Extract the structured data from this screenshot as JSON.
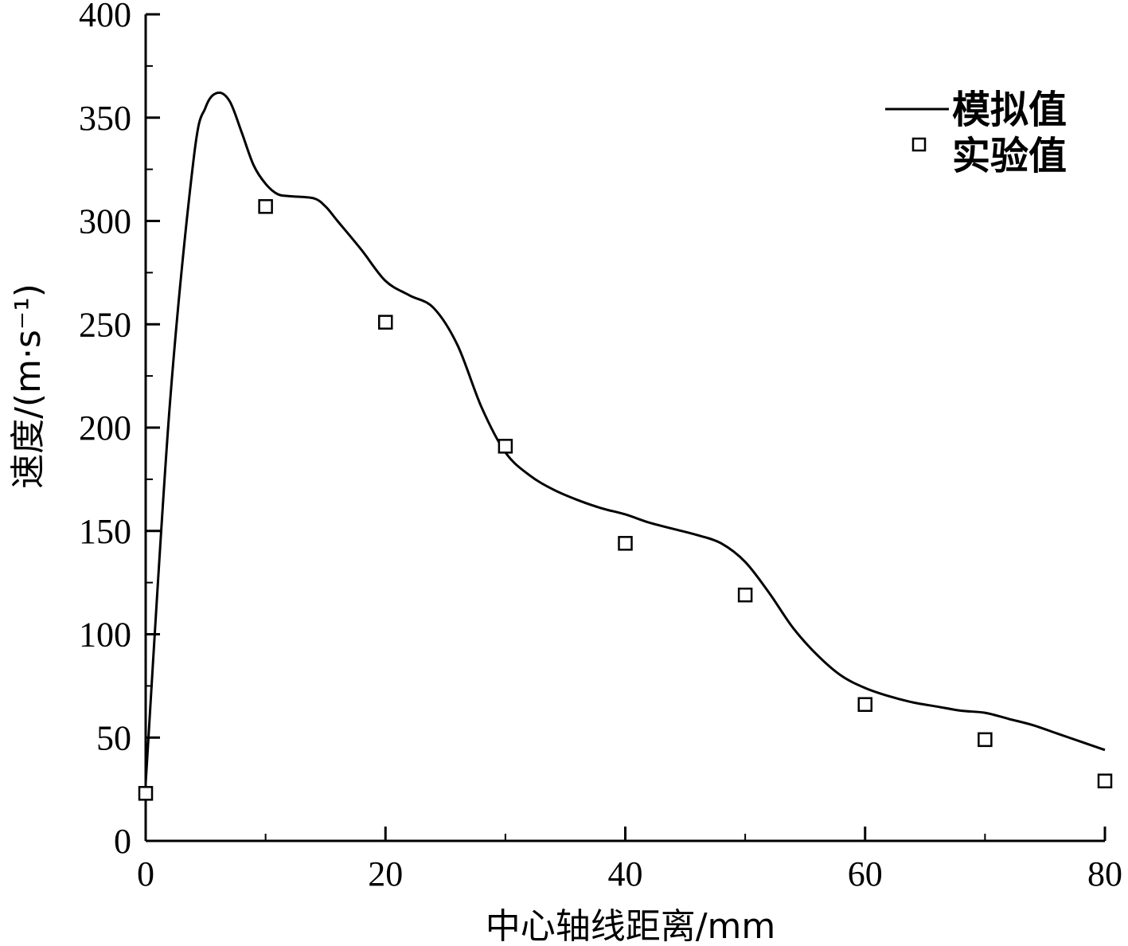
{
  "chart_data": {
    "type": "line",
    "xlabel": "中心轴线距离/mm",
    "ylabel": "速度/(m·s⁻¹)",
    "xlim": [
      0,
      80
    ],
    "ylim": [
      0,
      400
    ],
    "xticks": [
      0,
      20,
      40,
      60,
      80
    ],
    "yticks": [
      0,
      50,
      100,
      150,
      200,
      250,
      300,
      350,
      400
    ],
    "grid": false,
    "legend_position": "top-right",
    "series": [
      {
        "name": "模拟值",
        "style": "line",
        "color": "#000000",
        "x": [
          0,
          2,
          4,
          5,
          6,
          7,
          8,
          9,
          10,
          11,
          12,
          14,
          15,
          16,
          18,
          20,
          22,
          24,
          26,
          28,
          30,
          32,
          34,
          36,
          38,
          40,
          42,
          44,
          46,
          48,
          50,
          52,
          54,
          56,
          58,
          60,
          62,
          64,
          66,
          68,
          70,
          72,
          74,
          76,
          78,
          80
        ],
        "y": [
          28,
          210,
          330,
          355,
          362,
          358,
          343,
          327,
          318,
          313,
          312,
          311,
          307,
          300,
          286,
          271,
          264,
          258,
          240,
          210,
          188,
          177,
          170,
          165,
          161,
          158,
          154,
          151,
          148,
          144,
          135,
          120,
          103,
          90,
          80,
          74,
          70,
          67,
          65,
          63,
          62,
          59,
          56,
          52,
          48,
          44
        ]
      },
      {
        "name": "实验值",
        "style": "marker",
        "marker": "open-square",
        "color": "#000000",
        "x": [
          0,
          10,
          20,
          30,
          40,
          50,
          60,
          70,
          80
        ],
        "y": [
          23,
          307,
          251,
          191,
          144,
          119,
          66,
          49,
          29
        ]
      }
    ]
  }
}
